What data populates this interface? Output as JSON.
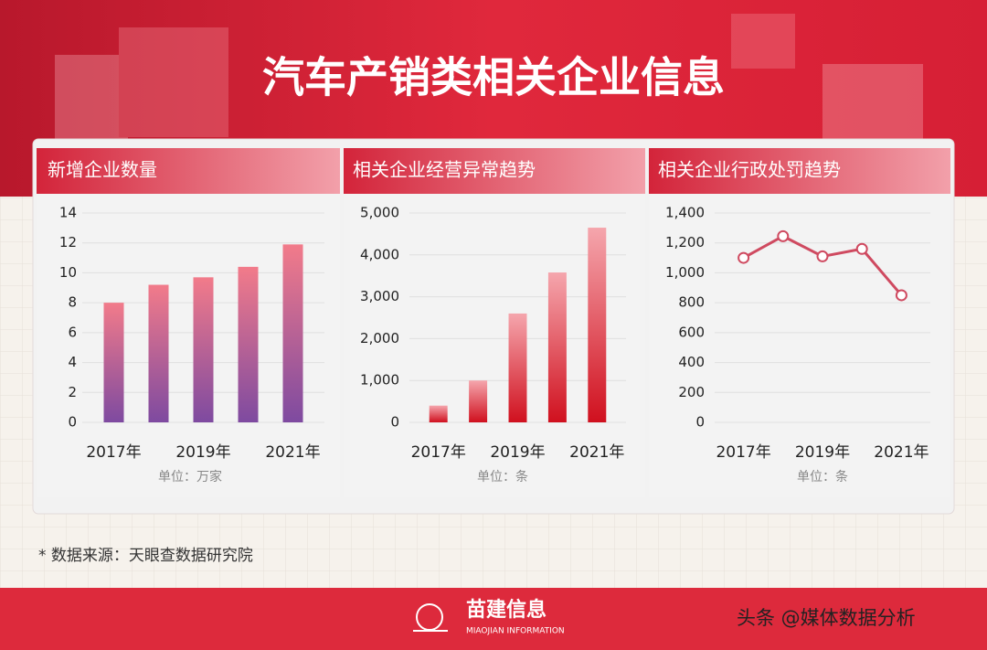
{
  "header": {
    "title": "汽车产销类相关企业信息"
  },
  "chart_data": [
    {
      "type": "bar",
      "title": "新增企业数量",
      "categories": [
        "2017年",
        null,
        "2019年",
        null,
        "2021年"
      ],
      "values": [
        8,
        9.2,
        9.7,
        10.4,
        11.9
      ],
      "gradient": [
        "#f27b8a",
        "#7e4aa0"
      ],
      "ylim": [
        0,
        14
      ],
      "yticks": [
        0,
        2,
        4,
        6,
        8,
        10,
        12,
        14
      ],
      "grid": true,
      "unit_label": "单位：万家"
    },
    {
      "type": "bar",
      "title": "相关企业经营异常趋势",
      "categories": [
        "2017年",
        null,
        "2019年",
        null,
        "2021年"
      ],
      "values": [
        400,
        1000,
        2600,
        3580,
        4650
      ],
      "gradient": [
        "#f5a6ad",
        "#d0101e"
      ],
      "ylim": [
        0,
        5000
      ],
      "yticks": [
        0,
        {
          "value": 1000,
          "label": "1,000"
        },
        {
          "value": 2000,
          "label": "2,000"
        },
        {
          "value": 3000,
          "label": "3,000"
        },
        {
          "value": 4000,
          "label": "4,000"
        },
        {
          "value": 5000,
          "label": "5,000"
        }
      ],
      "grid": true,
      "unit_label": "单位：条"
    },
    {
      "type": "line",
      "title": "相关企业行政处罚趋势",
      "categories": [
        "2017年",
        null,
        "2019年",
        null,
        "2021年"
      ],
      "values": [
        1100,
        1245,
        1110,
        1160,
        850
      ],
      "color": "#cf4a60",
      "ylim": [
        0,
        1400
      ],
      "yticks": [
        0,
        200,
        400,
        600,
        800,
        {
          "value": 1000,
          "label": "1,000"
        },
        {
          "value": 1200,
          "label": "1,200"
        },
        {
          "value": 1400,
          "label": "1,400"
        }
      ],
      "grid": true,
      "unit_label": "单位：条"
    }
  ],
  "footer": {
    "source": "* 数据来源：天眼查数据研究院",
    "brand": "苗建信息",
    "brand_en": "MIAOJIAN INFORMATION",
    "watermark": "头条 @媒体数据分析"
  }
}
